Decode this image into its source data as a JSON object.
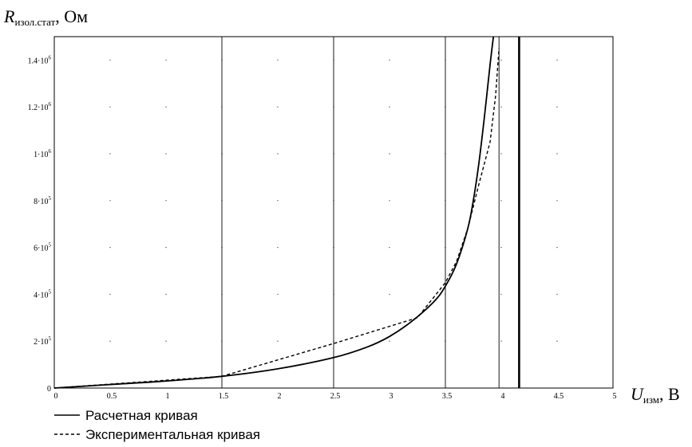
{
  "chart_data": {
    "type": "line",
    "xlim": [
      0,
      5
    ],
    "ylim": [
      0,
      1500000
    ],
    "x_ticks": [
      0,
      0.5,
      1,
      1.5,
      2,
      2.5,
      3,
      3.5,
      4,
      4.5,
      5
    ],
    "x_tick_labels": [
      "0",
      "0.5",
      "1",
      "1.5",
      "2",
      "2.5",
      "3",
      "3.5",
      "4",
      "4.5",
      "5"
    ],
    "y_ticks": [
      0,
      200000,
      400000,
      600000,
      800000,
      1000000,
      1200000,
      1400000
    ],
    "y_tick_labels": [
      {
        "base": "0",
        "exp": ""
      },
      {
        "base": "2·10",
        "exp": "5"
      },
      {
        "base": "4·10",
        "exp": "5"
      },
      {
        "base": "6·10",
        "exp": "5"
      },
      {
        "base": "8·10",
        "exp": "5"
      },
      {
        "base": "1·10",
        "exp": "6"
      },
      {
        "base": "1.2·10",
        "exp": "6"
      },
      {
        "base": "1.4·10",
        "exp": "6"
      }
    ],
    "ylabel": {
      "main": "R",
      "sub": "изол.стат",
      "unit": ", Ом"
    },
    "xlabel": {
      "main": "U",
      "sub": "изм",
      "unit": ", В"
    },
    "vertical_lines": [
      {
        "x": 1.5,
        "weight": "thin"
      },
      {
        "x": 2.5,
        "weight": "thin"
      },
      {
        "x": 3.5,
        "weight": "thin"
      },
      {
        "x": 3.98,
        "weight": "thin"
      },
      {
        "x": 4.16,
        "weight": "thick"
      }
    ],
    "grid": "dots",
    "legend_position": "bottom-left",
    "series": [
      {
        "name": "Расчетная кривая",
        "style": "solid",
        "x": [
          0,
          0.5,
          1,
          1.5,
          2,
          2.5,
          2.8,
          3,
          3.2,
          3.4,
          3.5,
          3.6,
          3.7,
          3.75,
          3.8,
          3.85,
          3.9,
          3.93
        ],
        "y": [
          0,
          15000,
          30000,
          50000,
          82000,
          130000,
          175000,
          220000,
          285000,
          370000,
          435000,
          530000,
          680000,
          800000,
          960000,
          1160000,
          1380000,
          1500000
        ]
      },
      {
        "name": "Экспериментальная кривая",
        "style": "dashed",
        "x": [
          0,
          1.5,
          2.5,
          3.25,
          3.5,
          3.6,
          3.7,
          3.8,
          3.9,
          3.95,
          3.98
        ],
        "y": [
          0,
          50000,
          190000,
          300000,
          450000,
          540000,
          680000,
          870000,
          1050000,
          1250000,
          1450000
        ]
      }
    ]
  }
}
